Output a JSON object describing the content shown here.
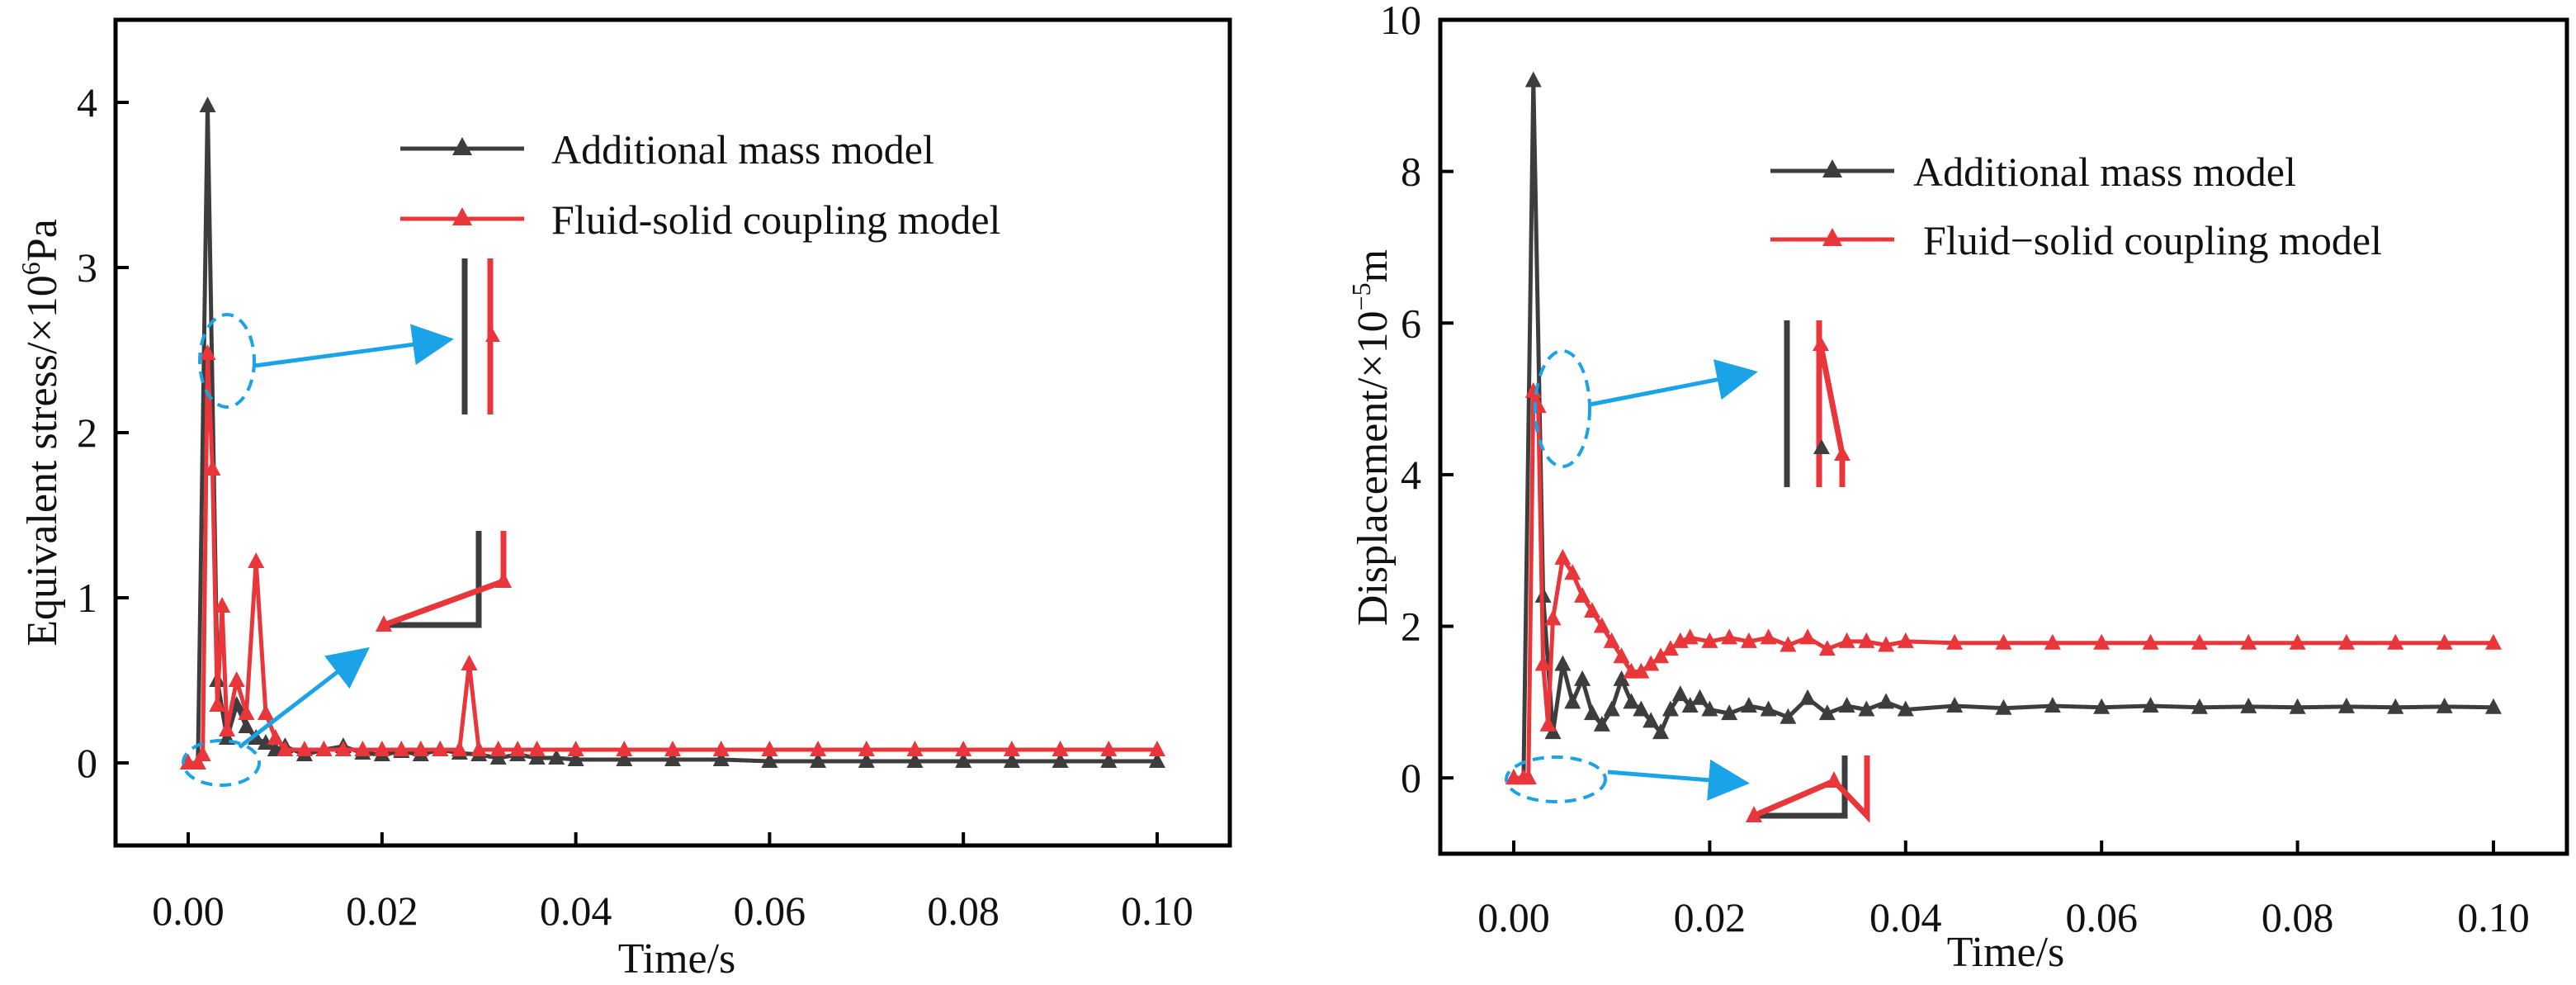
{
  "colors": {
    "series_mass": "#3d3d3d",
    "series_fsc": "#e8363a",
    "annotation": "#1ba3e8",
    "axis": "#000000"
  },
  "chart_data": [
    {
      "type": "line",
      "title": "",
      "xlabel": "Time/s",
      "ylabel_prefix": "Equivalent stress/×10",
      "ylabel_exp": "6",
      "ylabel_unit": "Pa",
      "xlim": [
        -0.0075,
        0.1075
      ],
      "ylim": [
        -0.5,
        4.5
      ],
      "xticks": [
        0.0,
        0.02,
        0.04,
        0.06,
        0.08,
        0.1
      ],
      "xtick_labels": [
        "0.00",
        "0.02",
        "0.04",
        "0.06",
        "0.08",
        "0.10"
      ],
      "yticks": [
        0,
        1,
        2,
        3,
        4
      ],
      "ytick_labels": [
        "0",
        "1",
        "2",
        "3",
        "4"
      ],
      "legend_position": "top-right",
      "series": [
        {
          "name": "Additional mass model",
          "color_key": "series_mass",
          "x": [
            0,
            0.001,
            0.002,
            0.003,
            0.004,
            0.005,
            0.006,
            0.007,
            0.008,
            0.009,
            0.01,
            0.012,
            0.014,
            0.016,
            0.018,
            0.02,
            0.022,
            0.024,
            0.026,
            0.028,
            0.03,
            0.032,
            0.034,
            0.036,
            0.038,
            0.04,
            0.045,
            0.05,
            0.055,
            0.06,
            0.065,
            0.07,
            0.075,
            0.08,
            0.085,
            0.09,
            0.095,
            0.1
          ],
          "y": [
            0,
            0,
            3.98,
            0.5,
            0.15,
            0.35,
            0.22,
            0.15,
            0.12,
            0.08,
            0.1,
            0.05,
            0.08,
            0.1,
            0.06,
            0.05,
            0.07,
            0.05,
            0.08,
            0.06,
            0.05,
            0.03,
            0.05,
            0.03,
            0.03,
            0.02,
            0.02,
            0.02,
            0.02,
            0.01,
            0.01,
            0.01,
            0.01,
            0.01,
            0.01,
            0.01,
            0.01,
            0.01
          ]
        },
        {
          "name": "Fluid-solid coupling model",
          "color_key": "series_fsc",
          "x": [
            0,
            0.001,
            0.0015,
            0.002,
            0.0025,
            0.003,
            0.0035,
            0.004,
            0.005,
            0.006,
            0.007,
            0.008,
            0.009,
            0.01,
            0.012,
            0.014,
            0.016,
            0.018,
            0.02,
            0.022,
            0.024,
            0.026,
            0.028,
            0.029,
            0.03,
            0.032,
            0.034,
            0.036,
            0.04,
            0.045,
            0.05,
            0.055,
            0.06,
            0.065,
            0.07,
            0.075,
            0.08,
            0.085,
            0.09,
            0.095,
            0.1
          ],
          "y": [
            0,
            0,
            0.05,
            2.48,
            1.78,
            0.35,
            0.95,
            0.2,
            0.5,
            0.3,
            1.22,
            0.3,
            0.15,
            0.08,
            0.08,
            0.08,
            0.08,
            0.08,
            0.08,
            0.08,
            0.08,
            0.08,
            0.08,
            0.6,
            0.08,
            0.08,
            0.08,
            0.08,
            0.08,
            0.08,
            0.08,
            0.08,
            0.08,
            0.08,
            0.08,
            0.08,
            0.08,
            0.08,
            0.08,
            0.08,
            0.08
          ]
        }
      ]
    },
    {
      "type": "line",
      "title": "",
      "xlabel": "Time/s",
      "ylabel_prefix": "Displacement/×10",
      "ylabel_exp": "−5",
      "ylabel_unit": "m",
      "xlim": [
        -0.0075,
        0.1075
      ],
      "ylim": [
        -1,
        10
      ],
      "xticks": [
        0.0,
        0.02,
        0.04,
        0.06,
        0.08,
        0.1
      ],
      "xtick_labels": [
        "0.00",
        "0.02",
        "0.04",
        "0.06",
        "0.08",
        "0.10"
      ],
      "yticks": [
        0,
        2,
        4,
        6,
        8,
        10
      ],
      "ytick_labels": [
        "0",
        "2",
        "4",
        "6",
        "8",
        "10"
      ],
      "legend_position": "top-right",
      "series": [
        {
          "name": "Additional mass model",
          "color_key": "series_mass",
          "x": [
            0,
            0.001,
            0.002,
            0.003,
            0.004,
            0.005,
            0.006,
            0.007,
            0.008,
            0.009,
            0.01,
            0.011,
            0.012,
            0.013,
            0.014,
            0.015,
            0.016,
            0.017,
            0.018,
            0.019,
            0.02,
            0.022,
            0.024,
            0.026,
            0.028,
            0.03,
            0.032,
            0.034,
            0.036,
            0.038,
            0.04,
            0.045,
            0.05,
            0.055,
            0.06,
            0.065,
            0.07,
            0.075,
            0.08,
            0.085,
            0.09,
            0.095,
            0.1
          ],
          "y": [
            0,
            0,
            9.2,
            2.4,
            0.6,
            1.5,
            1.0,
            1.3,
            0.85,
            0.7,
            0.9,
            1.3,
            1.0,
            0.9,
            0.75,
            0.6,
            0.9,
            1.1,
            0.95,
            1.05,
            0.9,
            0.85,
            0.95,
            0.9,
            0.8,
            1.05,
            0.85,
            0.95,
            0.9,
            1.0,
            0.9,
            0.95,
            0.92,
            0.95,
            0.93,
            0.95,
            0.93,
            0.94,
            0.93,
            0.94,
            0.93,
            0.94,
            0.93
          ]
        },
        {
          "name": "Fluid−solid coupling model",
          "color_key": "series_fsc",
          "x": [
            0,
            0.001,
            0.0015,
            0.002,
            0.0025,
            0.003,
            0.0035,
            0.004,
            0.005,
            0.006,
            0.007,
            0.008,
            0.009,
            0.01,
            0.011,
            0.012,
            0.013,
            0.014,
            0.015,
            0.016,
            0.017,
            0.018,
            0.02,
            0.022,
            0.024,
            0.026,
            0.028,
            0.03,
            0.032,
            0.034,
            0.036,
            0.038,
            0.04,
            0.045,
            0.05,
            0.055,
            0.06,
            0.065,
            0.07,
            0.075,
            0.08,
            0.085,
            0.09,
            0.095,
            0.1
          ],
          "y": [
            0,
            0,
            0,
            5.1,
            4.9,
            1.5,
            0.7,
            2.1,
            2.9,
            2.7,
            2.4,
            2.2,
            2.0,
            1.8,
            1.6,
            1.4,
            1.4,
            1.5,
            1.6,
            1.7,
            1.8,
            1.85,
            1.8,
            1.85,
            1.8,
            1.85,
            1.75,
            1.85,
            1.7,
            1.8,
            1.8,
            1.75,
            1.8,
            1.78,
            1.78,
            1.78,
            1.78,
            1.78,
            1.78,
            1.78,
            1.78,
            1.78,
            1.78,
            1.78,
            1.78
          ]
        }
      ]
    }
  ]
}
